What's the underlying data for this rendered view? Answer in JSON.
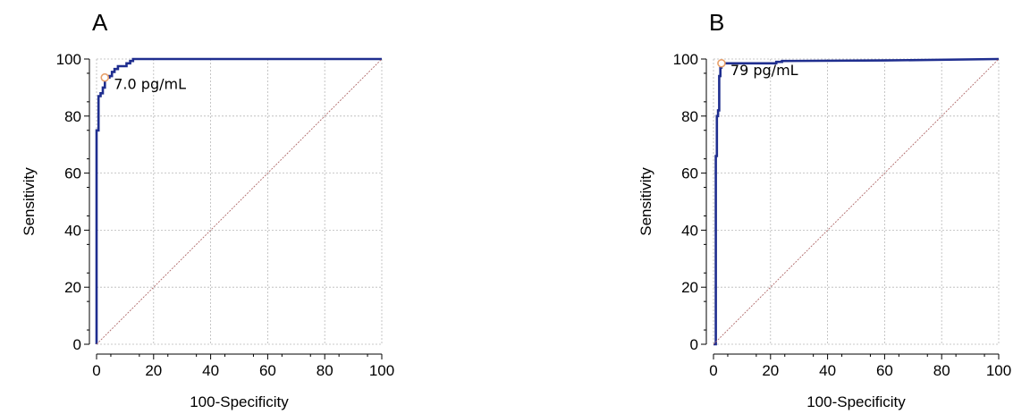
{
  "chart_data": [
    {
      "type": "line",
      "panel_label": "A",
      "xlabel": "100-Specificity",
      "ylabel": "Sensitivity",
      "xlim": [
        0,
        100
      ],
      "ylim": [
        0,
        100
      ],
      "x_ticks": [
        "0",
        "20",
        "40",
        "60",
        "80",
        "100"
      ],
      "y_ticks": [
        "0",
        "20",
        "40",
        "60",
        "80",
        "100"
      ],
      "grid": true,
      "series": [
        {
          "color": "#1f2e8f",
          "points": [
            [
              0,
              0
            ],
            [
              0,
              75
            ],
            [
              0.7,
              75
            ],
            [
              0.7,
              87
            ],
            [
              1.4,
              87
            ],
            [
              1.4,
              88
            ],
            [
              2.2,
              88
            ],
            [
              2.2,
              90
            ],
            [
              2.9,
              90
            ],
            [
              2.9,
              93.5
            ],
            [
              4.5,
              93.5
            ],
            [
              4.5,
              94
            ],
            [
              5.4,
              94
            ],
            [
              5.4,
              95.5
            ],
            [
              6.3,
              95.5
            ],
            [
              6.3,
              96.5
            ],
            [
              7.5,
              96.5
            ],
            [
              7.5,
              97.5
            ],
            [
              10.5,
              97.5
            ],
            [
              10.5,
              98.5
            ],
            [
              11.8,
              98.5
            ],
            [
              11.8,
              99.3
            ],
            [
              12.8,
              99.3
            ],
            [
              12.8,
              100
            ],
            [
              100,
              100
            ]
          ]
        },
        {
          "color": "#b06a6a",
          "dashed": true,
          "points": [
            [
              0,
              0
            ],
            [
              100,
              100
            ]
          ]
        }
      ],
      "cutoff_point": {
        "x": 2.9,
        "y": 93.5,
        "label": "7.0 pg/mL",
        "color": "#e8a06a"
      }
    },
    {
      "type": "line",
      "panel_label": "B",
      "xlabel": "100-Specificity",
      "ylabel": "Sensitivity",
      "xlim": [
        0,
        100
      ],
      "ylim": [
        0,
        100
      ],
      "x_ticks": [
        "0",
        "20",
        "40",
        "60",
        "80",
        "100"
      ],
      "y_ticks": [
        "0",
        "20",
        "40",
        "60",
        "80",
        "100"
      ],
      "grid": true,
      "series": [
        {
          "color": "#1f2e8f",
          "points": [
            [
              0,
              0
            ],
            [
              0.8,
              0
            ],
            [
              0.8,
              66
            ],
            [
              1.2,
              66
            ],
            [
              1.2,
              80
            ],
            [
              1.6,
              80
            ],
            [
              1.6,
              82
            ],
            [
              2,
              82
            ],
            [
              2,
              94
            ],
            [
              2.4,
              94
            ],
            [
              2.4,
              97
            ],
            [
              2.8,
              97
            ],
            [
              2.8,
              98.5
            ],
            [
              22,
              98.5
            ],
            [
              22,
              99
            ],
            [
              24,
              99
            ],
            [
              24,
              99.3
            ],
            [
              60,
              99.5
            ],
            [
              100,
              100
            ]
          ]
        },
        {
          "color": "#b06a6a",
          "dashed": true,
          "points": [
            [
              0,
              0
            ],
            [
              100,
              100
            ]
          ]
        }
      ],
      "cutoff_point": {
        "x": 2.8,
        "y": 98.5,
        "label": "79 pg/mL",
        "color": "#e8a06a"
      }
    }
  ]
}
